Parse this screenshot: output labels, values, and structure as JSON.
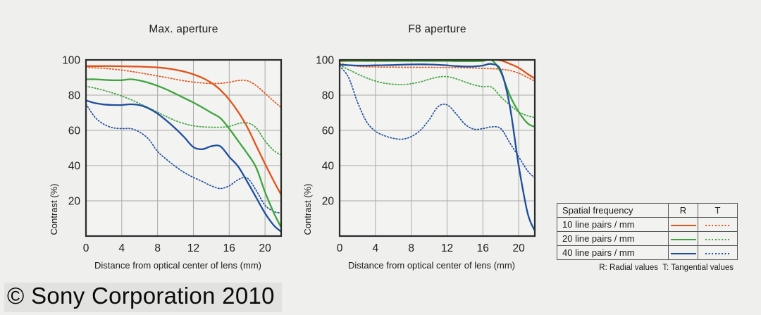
{
  "page": {
    "copyright": "© Sony Corporation 2010",
    "background": "#efefed"
  },
  "colors": {
    "freq10": "#e2531a",
    "freq20": "#3ea440",
    "freq40": "#1e4e9c",
    "grid": "#a9a9a9",
    "frame": "#2b2b2b"
  },
  "chart_data": [
    {
      "type": "line",
      "title": "Max. aperture",
      "xlabel": "Distance from optical center of lens (mm)",
      "ylabel": "Contrast (%)",
      "xlim": [
        0,
        21.8
      ],
      "ylim": [
        0,
        100
      ],
      "x_ticks": [
        0,
        4,
        8,
        12,
        16,
        20
      ],
      "y_ticks": [
        20,
        40,
        60,
        80,
        100
      ],
      "grid": true,
      "legend_position": "external-table",
      "x": [
        0,
        1,
        2,
        3,
        4,
        5,
        6,
        7,
        8,
        9,
        10,
        11,
        12,
        13,
        14,
        15,
        16,
        17,
        18,
        19,
        20,
        21,
        21.8
      ],
      "series": [
        {
          "name": "10 line pairs / mm - R (radial)",
          "color": "#e2531a",
          "style": "solid",
          "values": [
            96.5,
            96.5,
            96.5,
            96.5,
            96.4,
            96.3,
            96.2,
            96.0,
            95.7,
            95.2,
            94.4,
            93.3,
            91.8,
            89.8,
            87.0,
            83.0,
            77.5,
            70.5,
            62.0,
            51.5,
            41.0,
            31.0,
            23.5
          ]
        },
        {
          "name": "10 line pairs / mm - T (tangential)",
          "color": "#e2531a",
          "style": "dotted",
          "values": [
            95.8,
            95.5,
            95.2,
            94.8,
            94.2,
            93.5,
            92.7,
            91.8,
            90.9,
            90.0,
            89.0,
            88.1,
            87.4,
            86.9,
            86.6,
            86.7,
            87.3,
            88.3,
            88.2,
            85.5,
            81.0,
            76.5,
            73.0
          ]
        },
        {
          "name": "20 line pairs / mm - R (radial)",
          "color": "#3ea440",
          "style": "solid",
          "values": [
            89.0,
            89.0,
            88.7,
            88.5,
            88.5,
            89.0,
            88.3,
            87.0,
            85.3,
            83.2,
            80.8,
            78.3,
            75.8,
            73.0,
            70.0,
            67.0,
            61.0,
            54.0,
            47.0,
            39.0,
            25.0,
            13.0,
            5.0
          ]
        },
        {
          "name": "20 line pairs / mm - T (tangential)",
          "color": "#3ea440",
          "style": "dotted",
          "values": [
            85.0,
            84.0,
            82.7,
            81.2,
            79.5,
            77.5,
            75.2,
            72.8,
            70.3,
            67.8,
            65.5,
            63.8,
            62.6,
            62.0,
            61.8,
            61.8,
            62.2,
            63.8,
            64.3,
            61.5,
            54.0,
            48.5,
            46.0
          ]
        },
        {
          "name": "40 line pairs / mm - R (radial)",
          "color": "#1e4e9c",
          "style": "solid",
          "values": [
            77.0,
            75.5,
            74.7,
            74.4,
            74.4,
            74.8,
            74.3,
            72.5,
            69.5,
            65.5,
            61.0,
            56.0,
            50.5,
            49.3,
            51.0,
            51.0,
            45.0,
            39.5,
            31.0,
            22.0,
            13.0,
            6.0,
            2.5
          ]
        },
        {
          "name": "40 line pairs / mm - T (tangential)",
          "color": "#1e4e9c",
          "style": "dotted",
          "values": [
            75.0,
            67.5,
            63.5,
            61.5,
            61.0,
            61.0,
            59.0,
            55.0,
            48.0,
            43.5,
            39.5,
            36.0,
            33.3,
            31.0,
            28.5,
            27.0,
            28.5,
            32.0,
            33.0,
            26.0,
            17.5,
            14.0,
            13.0
          ]
        }
      ]
    },
    {
      "type": "line",
      "title": "F8 aperture",
      "xlabel": "Distance from optical center of lens (mm)",
      "ylabel": "Contrast (%)",
      "xlim": [
        0,
        21.8
      ],
      "ylim": [
        0,
        100
      ],
      "x_ticks": [
        0,
        4,
        8,
        12,
        16,
        20
      ],
      "y_ticks": [
        20,
        40,
        60,
        80,
        100
      ],
      "grid": true,
      "legend_position": "external-table",
      "x": [
        0,
        1,
        2,
        3,
        4,
        5,
        6,
        7,
        8,
        9,
        10,
        11,
        12,
        13,
        14,
        15,
        16,
        17,
        18,
        19,
        20,
        21,
        21.8
      ],
      "series": [
        {
          "name": "10 line pairs / mm - R (radial)",
          "color": "#e2531a",
          "style": "solid",
          "values": [
            99.3,
            99.4,
            99.4,
            99.4,
            99.4,
            99.4,
            99.5,
            99.5,
            99.5,
            99.5,
            99.5,
            99.5,
            99.5,
            99.5,
            99.5,
            99.6,
            99.8,
            100.0,
            99.7,
            97.8,
            95.5,
            92.0,
            89.5
          ]
        },
        {
          "name": "10 line pairs / mm - T (tangential)",
          "color": "#e2531a",
          "style": "dotted",
          "values": [
            98.0,
            97.0,
            96.4,
            96.1,
            96.0,
            95.9,
            95.9,
            95.8,
            95.8,
            95.8,
            95.8,
            95.7,
            95.7,
            95.6,
            95.5,
            95.4,
            95.2,
            95.0,
            94.7,
            94.0,
            92.5,
            90.0,
            88.0
          ]
        },
        {
          "name": "20 line pairs / mm - R (radial)",
          "color": "#3ea440",
          "style": "solid",
          "values": [
            99.5,
            99.5,
            99.5,
            99.4,
            99.4,
            99.4,
            99.4,
            99.4,
            99.4,
            99.4,
            99.4,
            99.4,
            99.4,
            99.3,
            99.3,
            99.3,
            99.4,
            99.8,
            93.0,
            80.0,
            70.5,
            64.0,
            62.0
          ]
        },
        {
          "name": "20 line pairs / mm - T (tangential)",
          "color": "#3ea440",
          "style": "dotted",
          "values": [
            97.0,
            94.5,
            92.0,
            89.8,
            88.0,
            86.8,
            86.2,
            86.0,
            86.5,
            87.5,
            89.0,
            90.3,
            90.5,
            89.3,
            87.5,
            85.8,
            84.8,
            84.5,
            79.0,
            74.5,
            70.5,
            68.3,
            67.3
          ]
        },
        {
          "name": "40 line pairs / mm - R (radial)",
          "color": "#1e4e9c",
          "style": "solid",
          "values": [
            97.3,
            97.0,
            96.8,
            96.8,
            96.9,
            97.0,
            97.1,
            97.3,
            97.4,
            97.5,
            97.4,
            97.2,
            96.9,
            96.5,
            96.3,
            96.3,
            96.8,
            97.7,
            94.0,
            74.0,
            40.0,
            13.0,
            3.0
          ]
        },
        {
          "name": "40 line pairs / mm - T (tangential)",
          "color": "#1e4e9c",
          "style": "dotted",
          "values": [
            96.5,
            90.0,
            76.0,
            65.0,
            59.5,
            57.0,
            55.5,
            55.0,
            56.5,
            60.0,
            66.0,
            73.5,
            74.5,
            69.5,
            63.5,
            60.7,
            61.0,
            62.0,
            61.0,
            53.0,
            45.0,
            37.0,
            33.0
          ]
        }
      ]
    }
  ],
  "legend": {
    "header": [
      "Spatial frequency",
      "R",
      "T"
    ],
    "rows": [
      {
        "label": "10 line pairs / mm",
        "color": "#e2531a"
      },
      {
        "label": "20 line pairs / mm",
        "color": "#3ea440"
      },
      {
        "label": "40 line pairs / mm",
        "color": "#1e4e9c"
      }
    ],
    "note": "R: Radial values  T: Tangential values"
  }
}
